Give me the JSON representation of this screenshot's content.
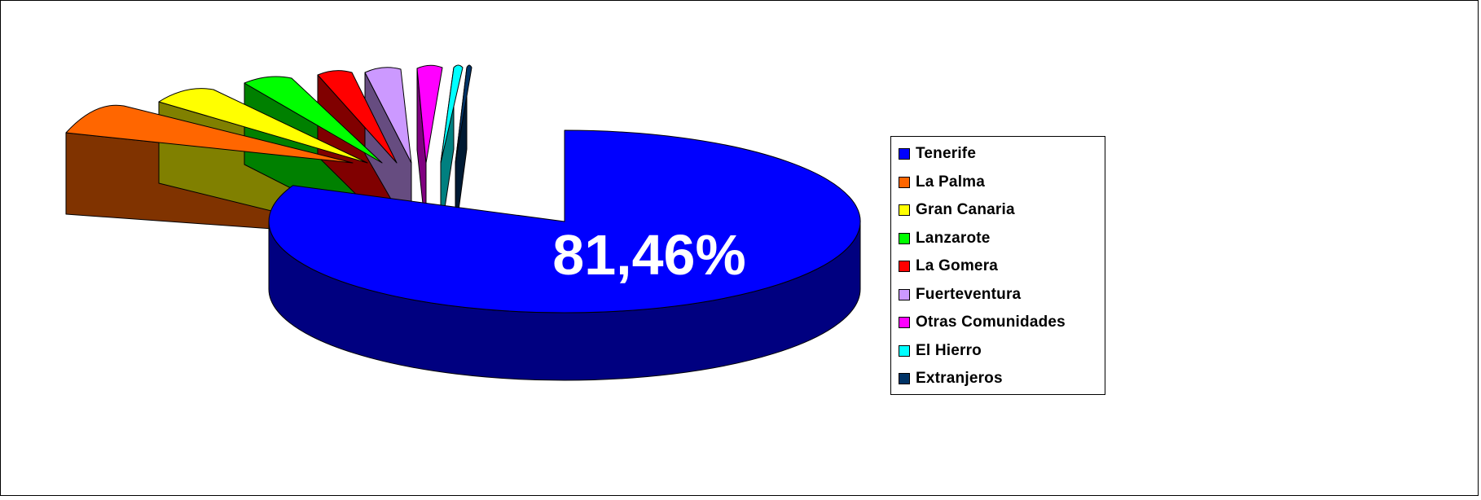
{
  "chart_data": {
    "type": "pie",
    "title": "",
    "data_label": "81,46%",
    "legend_position": "right",
    "series": [
      {
        "name": "Tenerife",
        "value": 81.46,
        "color": "#0000FF",
        "side_color": "#000080"
      },
      {
        "name": "La Palma",
        "value": 5.6,
        "color": "#FF6600",
        "side_color": "#803300"
      },
      {
        "name": "Gran Canaria",
        "value": 3.6,
        "color": "#FFFF00",
        "side_color": "#808000"
      },
      {
        "name": "Lanzarote",
        "value": 2.9,
        "color": "#00FF00",
        "side_color": "#008000"
      },
      {
        "name": "La Gomera",
        "value": 2.1,
        "color": "#FF0000",
        "side_color": "#800000"
      },
      {
        "name": "Fuerteventura",
        "value": 1.9,
        "color": "#CC99FF",
        "side_color": "#664C80"
      },
      {
        "name": "Otras Comunidades",
        "value": 1.5,
        "color": "#FF00FF",
        "side_color": "#800080"
      },
      {
        "name": "El Hierro",
        "value": 0.6,
        "color": "#00FFFF",
        "side_color": "#008080"
      },
      {
        "name": "Extranjeros",
        "value": 0.34,
        "color": "#003366",
        "side_color": "#001A33"
      }
    ]
  }
}
